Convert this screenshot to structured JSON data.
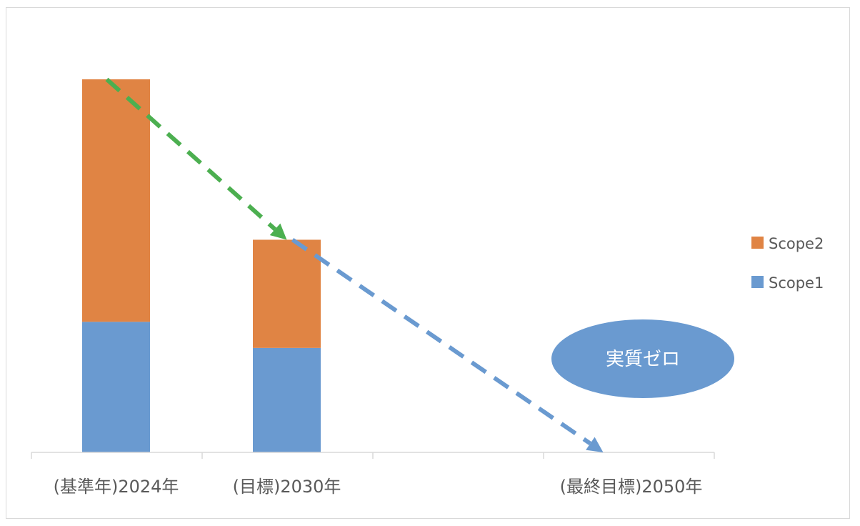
{
  "chart_data": {
    "type": "bar",
    "stacked": true,
    "categories": [
      "(基準年)2024年",
      "(目標)2030年",
      "",
      "(最終目標)2050年"
    ],
    "series": [
      {
        "name": "Scope1",
        "values": [
          35,
          28,
          null,
          null
        ],
        "color": "#6a9ad0"
      },
      {
        "name": "Scope2",
        "values": [
          65,
          29,
          null,
          null
        ],
        "color": "#e08444"
      }
    ],
    "ylim": [
      0,
      100
    ],
    "y_axis_visible": false,
    "grid": false,
    "legend": "right",
    "annotations": {
      "ellipse_label": "実質ゼロ",
      "ellipse_color": "#6a9ad0",
      "arrow_1_color": "#4caf50",
      "arrow_2_color": "#6a9ad0",
      "arrow_1": {
        "from": [
          "(基準年)2024年",
          100
        ],
        "to": [
          "(目標)2030年",
          57
        ]
      },
      "arrow_2": {
        "from": [
          "(目標)2030年",
          57
        ],
        "to": [
          "(最終目標)2050年",
          0
        ]
      }
    }
  }
}
